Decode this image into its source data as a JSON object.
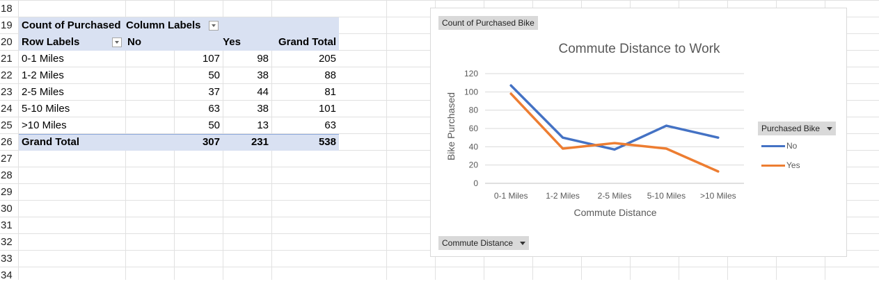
{
  "sheet": {
    "row_numbers": [
      "18",
      "19",
      "20",
      "21",
      "22",
      "23",
      "24",
      "25",
      "26",
      "27",
      "28",
      "29",
      "30",
      "31",
      "32",
      "33",
      "34"
    ]
  },
  "pivot": {
    "header_value_label": "Count of Purchased",
    "column_labels": "Column Labels",
    "row_labels": "Row Labels",
    "col_no": "No",
    "col_yes": "Yes",
    "col_total": "Grand Total",
    "rows": [
      {
        "label": "0-1 Miles",
        "no": "107",
        "yes": "98",
        "total": "205"
      },
      {
        "label": "1-2 Miles",
        "no": "50",
        "yes": "38",
        "total": "88"
      },
      {
        "label": "2-5 Miles",
        "no": "37",
        "yes": "44",
        "total": "81"
      },
      {
        "label": "5-10 Miles",
        "no": "63",
        "yes": "38",
        "total": "101"
      },
      {
        "label": ">10 Miles",
        "no": "50",
        "yes": "13",
        "total": "63"
      }
    ],
    "grand": {
      "label": "Grand Total",
      "no": "307",
      "yes": "231",
      "total": "538"
    }
  },
  "chart_buttons": {
    "value_field": "Count of Purchased Bike",
    "legend_field": "Purchased Bike",
    "axis_field": "Commute Distance"
  },
  "chart_data": {
    "type": "line",
    "title": "Commute Distance to Work",
    "xlabel": "Commute Distance",
    "ylabel": "Bike Purchased",
    "categories": [
      "0-1 Miles",
      "1-2 Miles",
      "2-5 Miles",
      "5-10 Miles",
      ">10 Miles"
    ],
    "ylim": [
      0,
      120
    ],
    "yticks": [
      0,
      20,
      40,
      60,
      80,
      100,
      120
    ],
    "grid": true,
    "legend": "right",
    "series": [
      {
        "name": "No",
        "values": [
          107,
          50,
          37,
          63,
          50
        ],
        "color": "#4472c4"
      },
      {
        "name": "Yes",
        "values": [
          98,
          38,
          44,
          38,
          13
        ],
        "color": "#ed7d31"
      }
    ]
  }
}
